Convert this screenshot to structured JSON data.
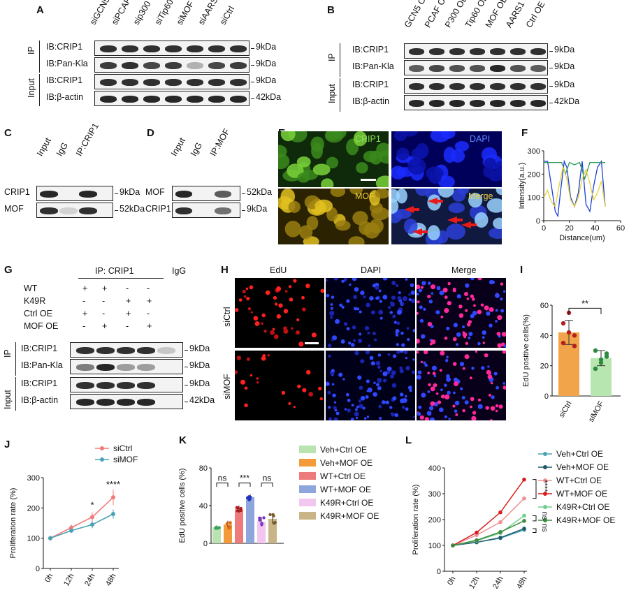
{
  "panelA": {
    "letter": "A",
    "lanes": [
      "siGCN5",
      "siPCAF",
      "sip300",
      "siTip60",
      "siMOF",
      "siAARS1",
      "siCtrl"
    ],
    "group_ip": "IP",
    "group_input": "Input",
    "rows": [
      {
        "label": "IB:CRIP1",
        "kda": "9kDa"
      },
      {
        "label": "IB:Pan-Kla",
        "kda": "9kDa"
      },
      {
        "label": "IB:CRIP1",
        "kda": "9kDa"
      },
      {
        "label": "IB:β-actin",
        "kda": "42kDa"
      }
    ]
  },
  "panelB": {
    "letter": "B",
    "lanes": [
      "GCN5 OE",
      "PCAF OE",
      "P300 OE",
      "Tip60 OE",
      "MOF OE",
      "AARS1 OE",
      "Ctrl OE"
    ],
    "group_ip": "IP",
    "group_input": "Input",
    "rows": [
      {
        "label": "IB:CRIP1",
        "kda": "9kDa"
      },
      {
        "label": "IB:Pan-Kla",
        "kda": "9kDa"
      },
      {
        "label": "IB:CRIP1",
        "kda": "9kDa"
      },
      {
        "label": "IB:β-actin",
        "kda": "42kDa"
      }
    ]
  },
  "panelC": {
    "letter": "C",
    "lanes": [
      "Input",
      "IgG",
      "IP:CRIP1"
    ],
    "rows": [
      {
        "label": "CRIP1",
        "kda": "9kDa"
      },
      {
        "label": "MOF",
        "kda": "52kDa"
      }
    ]
  },
  "panelD": {
    "letter": "D",
    "lanes": [
      "Input",
      "IgG",
      "IP:MOF"
    ],
    "rows": [
      {
        "label": "MOF",
        "kda": "52kDa"
      },
      {
        "label": "CRIP1",
        "kda": "9kDa"
      }
    ]
  },
  "panelE": {
    "letter": "E",
    "tiles": [
      "CRIP1",
      "DAPI",
      "MOF",
      "Merge"
    ]
  },
  "panelF": {
    "letter": "F",
    "chart_data": {
      "type": "line",
      "xlabel": "Distance(um)",
      "ylabel": "Intensity(a.u.)",
      "xlim": [
        0,
        60
      ],
      "ylim": [
        0,
        300
      ],
      "xticks": [
        0,
        20,
        40,
        60
      ],
      "yticks": [
        0,
        100,
        200,
        300
      ],
      "series": [
        {
          "color": "#1a3fd6",
          "x": [
            0,
            3,
            6,
            9,
            11,
            13,
            16,
            18,
            21,
            24,
            27,
            30,
            33,
            36,
            39,
            42,
            45,
            48
          ],
          "y": [
            255,
            255,
            150,
            40,
            20,
            120,
            255,
            230,
            100,
            60,
            120,
            255,
            70,
            40,
            150,
            230,
            255,
            60
          ]
        },
        {
          "color": "#2e9a5a",
          "x": [
            0,
            5,
            10,
            14,
            17,
            20,
            24,
            28,
            32,
            36,
            40,
            44,
            48
          ],
          "y": [
            250,
            250,
            250,
            250,
            200,
            250,
            240,
            250,
            180,
            250,
            250,
            250,
            250
          ]
        },
        {
          "color": "#e8d23a",
          "x": [
            0,
            3,
            6,
            9,
            12,
            15,
            18,
            21,
            24,
            27,
            30,
            33,
            36,
            39,
            42,
            45,
            48
          ],
          "y": [
            100,
            130,
            80,
            60,
            150,
            230,
            180,
            90,
            60,
            100,
            180,
            220,
            160,
            90,
            120,
            170,
            60
          ]
        }
      ]
    }
  },
  "panelG": {
    "letter": "G",
    "header": "IP: CRIP1",
    "igg": "IgG",
    "conditions": [
      {
        "label": "WT",
        "signs": [
          "+",
          "+",
          "-",
          "-"
        ]
      },
      {
        "label": "K49R",
        "signs": [
          "-",
          "-",
          "+",
          "+"
        ]
      },
      {
        "label": "Ctrl OE",
        "signs": [
          "+",
          "-",
          "+",
          "-"
        ]
      },
      {
        "label": "MOF OE",
        "signs": [
          "-",
          "+",
          "-",
          "+"
        ]
      }
    ],
    "group_ip": "IP",
    "group_input": "Input",
    "rows": [
      {
        "label": "IB:CRIP1",
        "kda": "9kDa"
      },
      {
        "label": "IB:Pan-Kla",
        "kda": "9kDa"
      },
      {
        "label": "IB:CRIP1",
        "kda": "9kDa"
      },
      {
        "label": "IB:β-actin",
        "kda": "42kDa"
      }
    ]
  },
  "panelH": {
    "letter": "H",
    "columns": [
      "EdU",
      "DAPI",
      "Merge"
    ],
    "rows": [
      "siCtrl",
      "siMOF"
    ]
  },
  "panelI": {
    "letter": "I",
    "sig": "**",
    "chart_data": {
      "type": "bar",
      "categories": [
        "siCtrl",
        "siMOF"
      ],
      "values": [
        42,
        25
      ],
      "errors": [
        8,
        5
      ],
      "points": [
        [
          48,
          55,
          40,
          35,
          42,
          33
        ],
        [
          30,
          22,
          28,
          18,
          24,
          26
        ]
      ],
      "colors": [
        "#f2a44a",
        "#b8e6b0"
      ],
      "ylabel": "EdU positive cells(%)",
      "ylim": [
        0,
        60
      ],
      "yticks": [
        "0",
        "20",
        "40",
        "60"
      ]
    }
  },
  "panelJ": {
    "letter": "J",
    "sig": [
      "*",
      "****"
    ],
    "chart_data": {
      "type": "line",
      "categories": [
        "0h",
        "12h",
        "24h",
        "48h"
      ],
      "ylabel": "Proliferation rate (%)",
      "ylim": [
        0,
        300
      ],
      "yticks": [
        "0",
        "100",
        "200",
        "300"
      ],
      "series": [
        {
          "name": "siCtrl",
          "color": "#f07a7a",
          "values": [
            100,
            135,
            170,
            235
          ],
          "errors": [
            8,
            10,
            15,
            25
          ]
        },
        {
          "name": "siMOF",
          "color": "#4aa3b5",
          "values": [
            100,
            125,
            145,
            180
          ],
          "errors": [
            6,
            8,
            12,
            15
          ]
        }
      ]
    }
  },
  "panelK": {
    "letter": "K",
    "sig": [
      "ns",
      "***",
      "ns"
    ],
    "chart_data": {
      "type": "bar",
      "categories": [
        "Veh+Ctrl OE",
        "Veh+MOF OE",
        "WT+Ctrl OE",
        "WT+MOF OE",
        "K49R+Ctrl OE",
        "K49R+MOF OE"
      ],
      "values": [
        17,
        20,
        36,
        49,
        23,
        26
      ],
      "errors": [
        2,
        4,
        4,
        3,
        5,
        5
      ],
      "colors": [
        "#b9e3b1",
        "#f39a3b",
        "#ee7b7b",
        "#8ea6dc",
        "#f1c6ef",
        "#c8b486"
      ],
      "dot_colors": [
        "#3aa35a",
        "#d96a10",
        "#b21a1a",
        "#2233bb",
        "#7a33cc",
        "#7a5a2a"
      ],
      "ylabel": "EdU positive cells (%)",
      "ylim": [
        0,
        80
      ],
      "yticks": [
        "0",
        "40",
        "80"
      ]
    }
  },
  "panelL": {
    "letter": "L",
    "sig": [
      "****",
      "ns",
      "ns"
    ],
    "chart_data": {
      "type": "line",
      "categories": [
        "0h",
        "12h",
        "24h",
        "48h"
      ],
      "ylabel": "Proliferation rate (%)",
      "ylim": [
        0,
        400
      ],
      "yticks": [
        "0",
        "100",
        "200",
        "300",
        "400"
      ],
      "series": [
        {
          "name": "Veh+Ctrl OE",
          "color": "#4aa3b5",
          "values": [
            100,
            112,
            128,
            160
          ]
        },
        {
          "name": "Veh+MOF OE",
          "color": "#1f5a6b",
          "values": [
            100,
            112,
            130,
            165
          ]
        },
        {
          "name": "WT+Ctrl OE",
          "color": "#f09090",
          "values": [
            100,
            140,
            190,
            282
          ]
        },
        {
          "name": "WT+MOF OE",
          "color": "#d81f1f",
          "values": [
            100,
            150,
            228,
            355
          ]
        },
        {
          "name": "K49R+Ctrl OE",
          "color": "#6fcf8f",
          "values": [
            100,
            118,
            148,
            215
          ]
        },
        {
          "name": "K49R+MOF OE",
          "color": "#3d8a3d",
          "values": [
            100,
            120,
            152,
            195
          ]
        }
      ]
    }
  }
}
